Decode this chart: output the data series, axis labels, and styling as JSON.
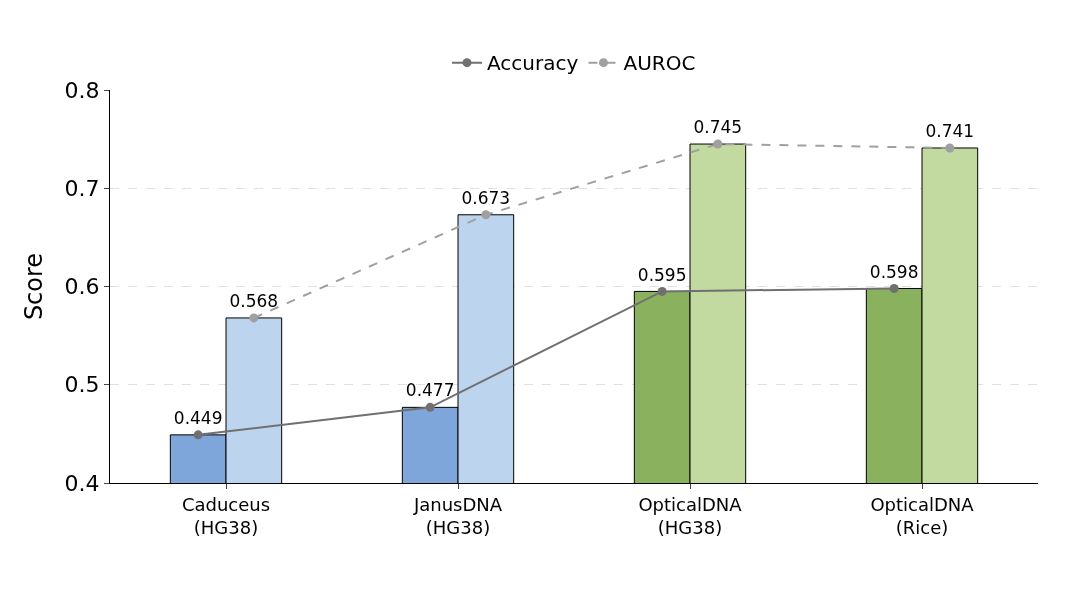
{
  "chart_data": {
    "type": "bar",
    "ylabel": "Score",
    "categories": [
      "Caduceus\n(HG38)",
      "JanusDNA\n(HG38)",
      "OpticalDNA\n(HG38)",
      "OpticalDNA\n(Rice)"
    ],
    "series": [
      {
        "colors": [
          "#7fa6db",
          "#7fa6db",
          "#8ab25e",
          "#8ab25e"
        ],
        "values": [
          0.449,
          0.477,
          0.595,
          0.598
        ]
      },
      {
        "colors": [
          "#bdd4ee",
          "#bdd4ee",
          "#c2d9a0",
          "#c2d9a0"
        ],
        "values": [
          0.568,
          0.673,
          0.745,
          0.741
        ]
      },
      {
        "type": "line",
        "name": "Accuracy",
        "color": "#707070",
        "line_style": "solid",
        "values": [
          0.449,
          0.477,
          0.595,
          0.598
        ],
        "value_labels": [
          "0.449",
          "0.477",
          "0.595",
          "0.598"
        ]
      },
      {
        "type": "line",
        "name": "AUROC",
        "color": "#a0a0a0",
        "line_style": "dashed",
        "values": [
          0.568,
          0.673,
          0.745,
          0.741
        ],
        "value_labels": [
          "0.568",
          "0.673",
          "0.745",
          "0.741"
        ]
      }
    ],
    "ylim": [
      0.4,
      0.8
    ],
    "yticks": [
      0.4,
      0.5,
      0.6,
      0.7,
      0.8
    ],
    "grid": "y",
    "legend": "top",
    "marker": "circle"
  }
}
